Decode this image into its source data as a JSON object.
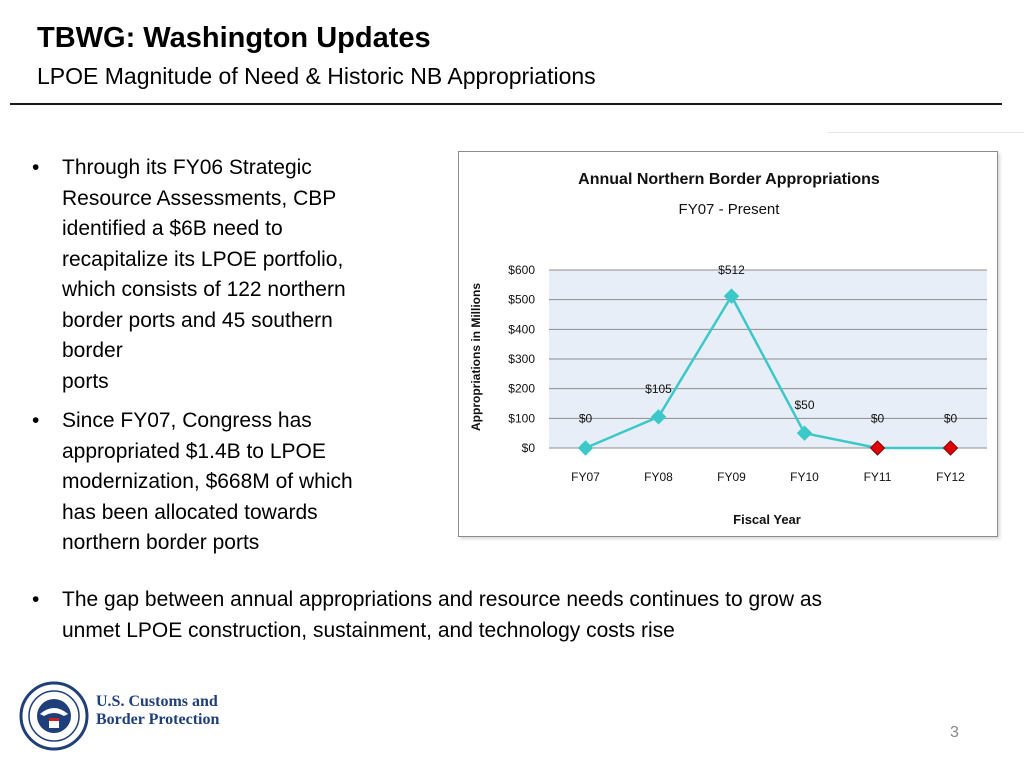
{
  "header": {
    "title": "TBWG: Washington Updates",
    "subtitle": "LPOE Magnitude of Need & Historic NB Appropriations"
  },
  "bullets": [
    {
      "lines": [
        "Through its FY06 Strategic",
        "Resource Assessments, CBP",
        "identified a $6B need to",
        "recapitalize its LPOE portfolio,",
        "which consists of 122 northern",
        "border ports and 45 southern",
        "border",
        "ports"
      ]
    },
    {
      "lines": [
        "Since FY07, Congress has",
        "appropriated $1.4B to LPOE",
        "modernization, $668M of which",
        "has been allocated towards",
        "northern border ports"
      ]
    }
  ],
  "bottom_bullet": {
    "lines": [
      "The gap between annual appropriations and resource needs continues to grow as",
      "unmet LPOE construction, sustainment, and technology costs rise"
    ]
  },
  "bullet_symbol": "•",
  "chart_data": {
    "type": "line",
    "title": "Annual Northern Border Appropriations",
    "subtitle": "FY07 - Present",
    "xlabel": "Fiscal Year",
    "ylabel": "Appropriations in Millions",
    "categories": [
      "FY07",
      "FY08",
      "FY09",
      "FY10",
      "FY11",
      "FY12"
    ],
    "series": [
      {
        "values": [
          0,
          105,
          512,
          50,
          0,
          0
        ],
        "data_labels": [
          "$0",
          "$105",
          "$512",
          "$50",
          "$0",
          "$0"
        ],
        "color": "#3cc8c8",
        "marker_colors": [
          "#3cc8c8",
          "#3cc8c8",
          "#3cc8c8",
          "#3cc8c8",
          "#e00000",
          "#e00000"
        ]
      }
    ],
    "ylim": [
      0,
      600
    ],
    "yticks": [
      0,
      100,
      200,
      300,
      400,
      500,
      600
    ],
    "ytick_labels": [
      "$0",
      "$100",
      "$200",
      "$300",
      "$400",
      "$500",
      "$600"
    ],
    "grid": true,
    "plot_background": "#e8eef7"
  },
  "footer": {
    "logo_lines": [
      "U.S. Customs and",
      "Border Protection"
    ],
    "page_number": "3"
  }
}
